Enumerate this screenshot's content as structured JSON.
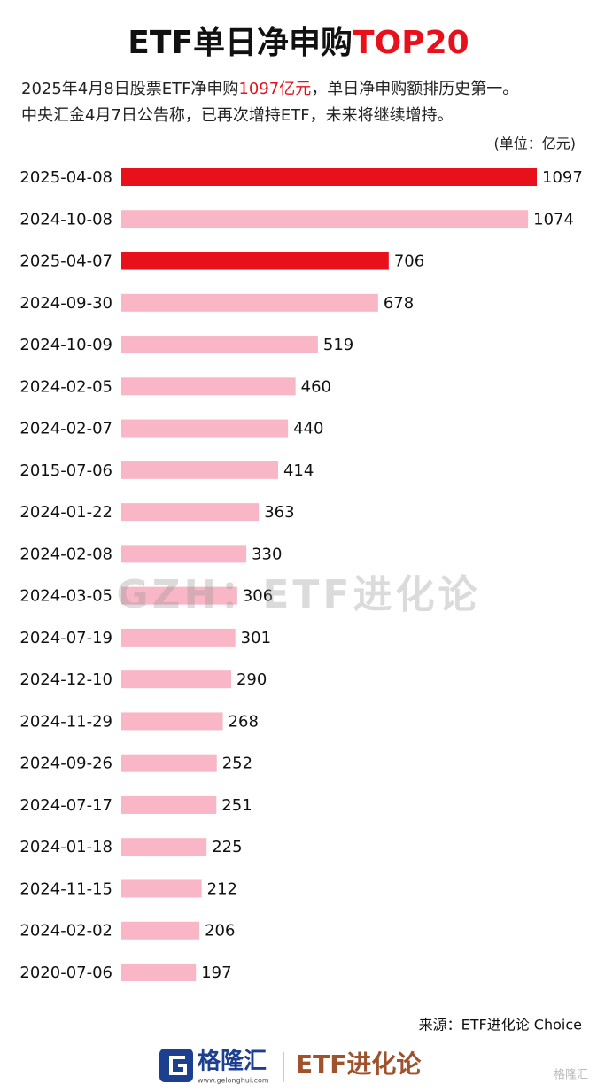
{
  "chart_data": {
    "type": "bar",
    "orientation": "horizontal",
    "title": [
      "ETF单日净申购",
      "TOP20"
    ],
    "subtitle": [
      [
        "2025年4月8日股票ETF净申购",
        "1097亿元",
        "，单日净申购额排历史第一。"
      ],
      [
        "中央汇金4月7日公告称，已再次增持ETF，未来将继续增持。"
      ]
    ],
    "unit": "(单位：亿元)",
    "categories": [
      "2025-04-08",
      "2024-10-08",
      "2025-04-07",
      "2024-09-30",
      "2024-10-09",
      "2024-02-05",
      "2024-02-07",
      "2015-07-06",
      "2024-01-22",
      "2024-02-08",
      "2024-03-05",
      "2024-07-19",
      "2024-12-10",
      "2024-11-29",
      "2024-09-26",
      "2024-07-17",
      "2024-01-18",
      "2024-11-15",
      "2024-02-02",
      "2020-07-06"
    ],
    "values": [
      1097,
      1074,
      706,
      678,
      519,
      460,
      440,
      414,
      363,
      330,
      306,
      301,
      290,
      268,
      252,
      251,
      225,
      212,
      206,
      197
    ],
    "colors": [
      "#e8111b",
      "#f9b6c6",
      "#e8111b",
      "#f9b6c6",
      "#f9b6c6",
      "#f9b6c6",
      "#f9b6c6",
      "#f9b6c6",
      "#f9b6c6",
      "#f9b6c6",
      "#f9b6c6",
      "#f9b6c6",
      "#f9b6c6",
      "#f9b6c6",
      "#f9b6c6",
      "#f9b6c6",
      "#f9b6c6",
      "#f9b6c6",
      "#f9b6c6",
      "#f9b6c6"
    ],
    "watermark": "GZH：ETF进化论",
    "source": "来源：ETF进化论 Choice",
    "footer": {
      "brand": "格隆汇",
      "url": "www.gelonghui.com",
      "account": "ETF进化论",
      "corner": "格隆汇"
    }
  }
}
